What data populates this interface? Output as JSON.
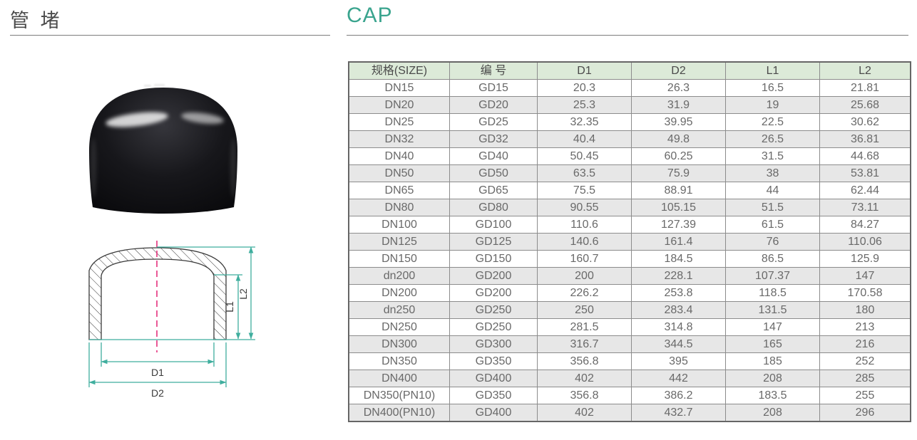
{
  "header": {
    "title_cn": "管 堵",
    "title_en": "CAP"
  },
  "colors": {
    "accent_teal": "#3aa48e",
    "dimension_line": "#3fae9e",
    "centerline_pink": "#e5307c",
    "table_header_bg": "#dcead8",
    "table_alt_row_bg": "#e7e7e7"
  },
  "diagram": {
    "d1_label": "D1",
    "d2_label": "D2",
    "l1_label": "L1",
    "l2_label": "L2"
  },
  "table": {
    "headers": [
      "规格(SIZE)",
      "编 号",
      "D1",
      "D2",
      "L1",
      "L2"
    ],
    "rows": [
      [
        "DN15",
        "GD15",
        "20.3",
        "26.3",
        "16.5",
        "21.81"
      ],
      [
        "DN20",
        "GD20",
        "25.3",
        "31.9",
        "19",
        "25.68"
      ],
      [
        "DN25",
        "GD25",
        "32.35",
        "39.95",
        "22.5",
        "30.62"
      ],
      [
        "DN32",
        "GD32",
        "40.4",
        "49.8",
        "26.5",
        "36.81"
      ],
      [
        "DN40",
        "GD40",
        "50.45",
        "60.25",
        "31.5",
        "44.68"
      ],
      [
        "DN50",
        "GD50",
        "63.5",
        "75.9",
        "38",
        "53.81"
      ],
      [
        "DN65",
        "GD65",
        "75.5",
        "88.91",
        "44",
        "62.44"
      ],
      [
        "DN80",
        "GD80",
        "90.55",
        "105.15",
        "51.5",
        "73.11"
      ],
      [
        "DN100",
        "GD100",
        "110.6",
        "127.39",
        "61.5",
        "84.27"
      ],
      [
        "DN125",
        "GD125",
        "140.6",
        "161.4",
        "76",
        "110.06"
      ],
      [
        "DN150",
        "GD150",
        "160.7",
        "184.5",
        "86.5",
        "125.9"
      ],
      [
        "dn200",
        "GD200",
        "200",
        "228.1",
        "107.37",
        "147"
      ],
      [
        "DN200",
        "GD200",
        "226.2",
        "253.8",
        "118.5",
        "170.58"
      ],
      [
        "dn250",
        "GD250",
        "250",
        "283.4",
        "131.5",
        "180"
      ],
      [
        "DN250",
        "GD250",
        "281.5",
        "314.8",
        "147",
        "213"
      ],
      [
        "DN300",
        "GD300",
        "316.7",
        "344.5",
        "165",
        "216"
      ],
      [
        "DN350",
        "GD350",
        "356.8",
        "395",
        "185",
        "252"
      ],
      [
        "DN400",
        "GD400",
        "402",
        "442",
        "208",
        "285"
      ],
      [
        "DN350(PN10)",
        "GD350",
        "356.8",
        "386.2",
        "183.5",
        "255"
      ],
      [
        "DN400(PN10)",
        "GD400",
        "402",
        "432.7",
        "208",
        "296"
      ]
    ]
  }
}
